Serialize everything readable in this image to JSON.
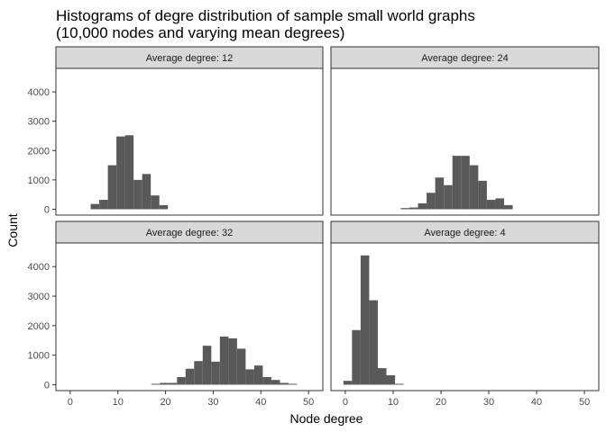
{
  "chart_data": {
    "type": "bar",
    "title_lines": [
      "Histograms of degre distribution of sample small world graphs",
      "(10,000 nodes and varying mean degrees)"
    ],
    "xlabel": "Node degree",
    "ylabel": "Count",
    "xlim": [
      -3,
      53
    ],
    "ylim": [
      -200,
      4800
    ],
    "x_ticks": [
      0,
      10,
      20,
      30,
      40,
      50
    ],
    "y_ticks": [
      0,
      1000,
      2000,
      3000,
      4000
    ],
    "x_tick_labels": [
      "0",
      "10",
      "20",
      "30",
      "40",
      "50"
    ],
    "y_tick_labels": [
      "0",
      "1000",
      "2000",
      "3000",
      "4000"
    ],
    "grid": false,
    "bin_width": 1.8,
    "panels": [
      {
        "strip": "Average degree:  12",
        "bins": [
          {
            "x": 5.2,
            "count": 180
          },
          {
            "x": 7.0,
            "count": 320
          },
          {
            "x": 8.8,
            "count": 1500
          },
          {
            "x": 10.6,
            "count": 2480
          },
          {
            "x": 12.4,
            "count": 2520
          },
          {
            "x": 14.2,
            "count": 1000
          },
          {
            "x": 16.0,
            "count": 1200
          },
          {
            "x": 17.8,
            "count": 470
          },
          {
            "x": 19.6,
            "count": 140
          }
        ]
      },
      {
        "strip": "Average degree:  24",
        "bins": [
          {
            "x": 12.5,
            "count": 40
          },
          {
            "x": 14.3,
            "count": 60
          },
          {
            "x": 16.1,
            "count": 200
          },
          {
            "x": 17.9,
            "count": 560
          },
          {
            "x": 19.7,
            "count": 1080
          },
          {
            "x": 21.5,
            "count": 820
          },
          {
            "x": 23.3,
            "count": 1820
          },
          {
            "x": 25.1,
            "count": 1820
          },
          {
            "x": 26.9,
            "count": 1500
          },
          {
            "x": 28.7,
            "count": 970
          },
          {
            "x": 30.5,
            "count": 320
          },
          {
            "x": 32.3,
            "count": 370
          },
          {
            "x": 34.1,
            "count": 140
          }
        ]
      },
      {
        "strip": "Average degree:  32",
        "bins": [
          {
            "x": 17.9,
            "count": 30
          },
          {
            "x": 19.7,
            "count": 60
          },
          {
            "x": 21.5,
            "count": 60
          },
          {
            "x": 23.3,
            "count": 260
          },
          {
            "x": 25.1,
            "count": 540
          },
          {
            "x": 26.9,
            "count": 800
          },
          {
            "x": 28.7,
            "count": 1320
          },
          {
            "x": 30.5,
            "count": 780
          },
          {
            "x": 32.3,
            "count": 1630
          },
          {
            "x": 34.1,
            "count": 1570
          },
          {
            "x": 35.9,
            "count": 1220
          },
          {
            "x": 37.7,
            "count": 520
          },
          {
            "x": 39.5,
            "count": 650
          },
          {
            "x": 41.3,
            "count": 260
          },
          {
            "x": 43.1,
            "count": 160
          },
          {
            "x": 44.9,
            "count": 60
          },
          {
            "x": 46.7,
            "count": 30
          }
        ]
      },
      {
        "strip": "Average degree:  4",
        "bins": [
          {
            "x": 0.5,
            "count": 130
          },
          {
            "x": 2.3,
            "count": 1850
          },
          {
            "x": 4.1,
            "count": 4380
          },
          {
            "x": 5.9,
            "count": 2860
          },
          {
            "x": 7.7,
            "count": 560
          },
          {
            "x": 9.5,
            "count": 320
          },
          {
            "x": 11.3,
            "count": 30
          }
        ]
      }
    ]
  },
  "colors": {
    "bar": "#595959",
    "strip_fill": "#d9d9d9",
    "panel_border": "#333333",
    "tick": "#333333"
  }
}
